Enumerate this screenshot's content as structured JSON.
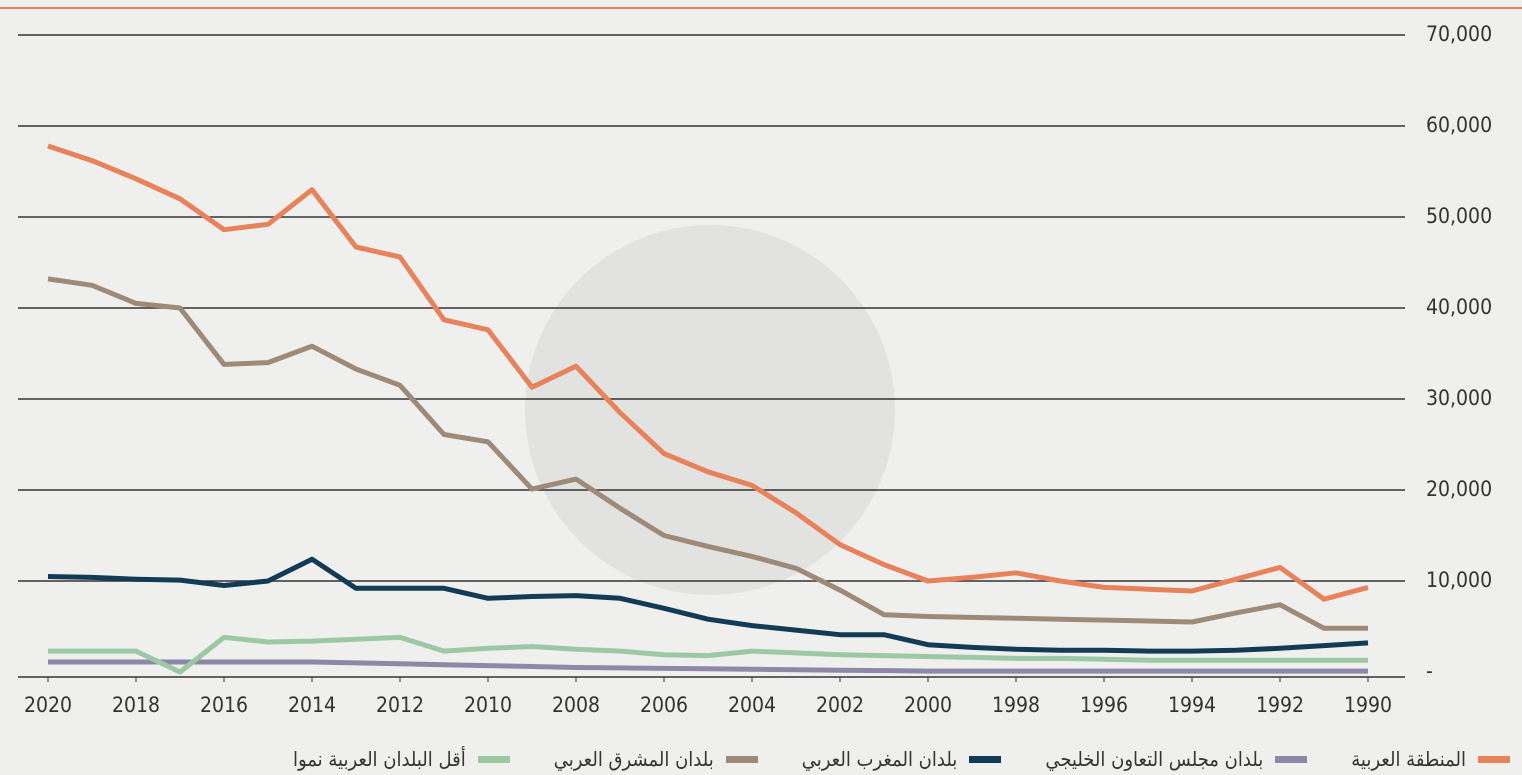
{
  "chart_data": {
    "type": "line",
    "x": [
      2020,
      2019,
      2018,
      2017,
      2016,
      2015,
      2014,
      2013,
      2012,
      2011,
      2010,
      2009,
      2008,
      2007,
      2006,
      2005,
      2004,
      2003,
      2002,
      2001,
      2000,
      1999,
      1998,
      1997,
      1996,
      1995,
      1994,
      1993,
      1992,
      1991,
      1990
    ],
    "xlim": [
      2020,
      1990
    ],
    "xticks": [
      2020,
      2018,
      2016,
      2014,
      2012,
      2010,
      2008,
      2006,
      2004,
      2002,
      2000,
      1998,
      1996,
      1994,
      1992,
      1990
    ],
    "ylim": [
      0,
      70000
    ],
    "yticks": [
      {
        "value": 0,
        "label": "-"
      },
      {
        "value": 10000,
        "label": "10,000"
      },
      {
        "value": 20000,
        "label": "20,000"
      },
      {
        "value": 30000,
        "label": "30,000"
      },
      {
        "value": 40000,
        "label": "40,000"
      },
      {
        "value": 50000,
        "label": "50,000"
      },
      {
        "value": 60000,
        "label": "60,000"
      },
      {
        "value": 70000,
        "label": "70,000"
      }
    ],
    "grid": true,
    "legend": "bottom",
    "series": [
      {
        "name": "المنطقة العربية",
        "color": "#e8825a",
        "values": [
          57800,
          56200,
          54200,
          52000,
          48600,
          49200,
          53000,
          46700,
          45600,
          38700,
          37600,
          31300,
          33600,
          28500,
          24000,
          22000,
          20500,
          17500,
          14000,
          11800,
          10000,
          10400,
          10900,
          10000,
          9300,
          9100,
          8900,
          10200,
          11500,
          8000,
          9300
        ]
      },
      {
        "name": "بلدان مجلس التعاون الخليجي",
        "color": "#8e88a8",
        "values": [
          1100,
          1100,
          1100,
          1100,
          1100,
          1100,
          1100,
          1000,
          900,
          800,
          700,
          600,
          500,
          450,
          400,
          350,
          300,
          250,
          200,
          150,
          100,
          100,
          100,
          100,
          100,
          100,
          100,
          100,
          100,
          100,
          100
        ]
      },
      {
        "name": "بلدان المغرب العربي",
        "color": "#123c55",
        "values": [
          10500,
          10400,
          10200,
          10100,
          9500,
          10000,
          12400,
          9200,
          9200,
          9200,
          8100,
          8300,
          8400,
          8100,
          7000,
          5800,
          5100,
          4600,
          4100,
          4100,
          3000,
          2700,
          2500,
          2400,
          2400,
          2300,
          2300,
          2400,
          2600,
          2900,
          3200
        ]
      },
      {
        "name": "بلدان المشرق العربي",
        "color": "#9e8a78",
        "values": [
          43200,
          42500,
          40500,
          40000,
          33800,
          34000,
          35800,
          33300,
          31500,
          26100,
          25300,
          20100,
          21200,
          18000,
          15000,
          13800,
          12700,
          11400,
          9000,
          6300,
          6100,
          6000,
          5900,
          5800,
          5700,
          5600,
          5500,
          6500,
          7400,
          4800,
          4800
        ]
      },
      {
        "name": "أقل البلدان العربية نموا",
        "color": "#9cc9a3",
        "values": [
          2300,
          2300,
          2300,
          0,
          3800,
          3300,
          3400,
          3600,
          3800,
          2300,
          2600,
          2800,
          2500,
          2300,
          1900,
          1800,
          2300,
          2100,
          1900,
          1800,
          1700,
          1600,
          1500,
          1500,
          1400,
          1300,
          1300,
          1300,
          1300,
          1300,
          1300
        ]
      }
    ]
  }
}
